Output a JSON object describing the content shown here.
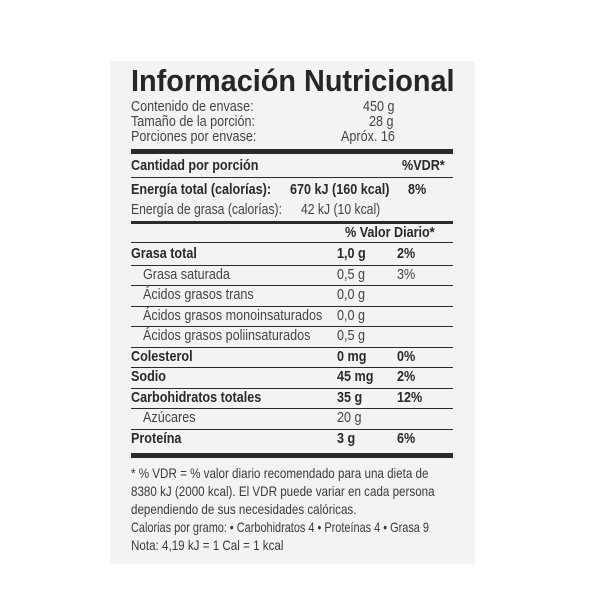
{
  "label": {
    "title": "Información Nutricional",
    "header": [
      {
        "label": "Contenido de envase:",
        "value": "450 g"
      },
      {
        "label": "Tamaño de la porción:",
        "value": "28 g"
      },
      {
        "label": "Porciones por envase:",
        "value": "Apróx. 16"
      }
    ],
    "amount_per_serving": "Cantidad por porción",
    "vdr_header": "%VDR*",
    "energy": {
      "label": "Energía total (calorías):",
      "value": "670 kJ (160 kcal)",
      "pct": "8%"
    },
    "energy_fat": {
      "label": "Energía de grasa (calorías):",
      "value": "42 kJ (10 kcal)"
    },
    "daily_value_header": "% Valor Diario*",
    "nutrients": [
      {
        "label": "Grasa total",
        "amount": "1,0 g",
        "pct": "2%",
        "bold": true
      },
      {
        "label": "Grasa saturada",
        "amount": "0,5 g",
        "pct": "3%",
        "bold": false
      },
      {
        "label": "Ácidos grasos trans",
        "amount": "0,0 g",
        "pct": "",
        "bold": false
      },
      {
        "label": "Ácidos grasos monoinsaturados",
        "amount": "0,0 g",
        "pct": "",
        "bold": false
      },
      {
        "label": "Ácidos grasos poliinsaturados",
        "amount": "0,5 g",
        "pct": "",
        "bold": false
      },
      {
        "label": "Colesterol",
        "amount": "0 mg",
        "pct": "0%",
        "bold": true
      },
      {
        "label": "Sodio",
        "amount": "45 mg",
        "pct": "2%",
        "bold": true
      },
      {
        "label": "Carbohidratos totales",
        "amount": "35 g",
        "pct": "12%",
        "bold": true
      },
      {
        "label": "Azúcares",
        "amount": "20 g",
        "pct": "",
        "bold": false
      },
      {
        "label": "Proteína",
        "amount": "3 g",
        "pct": "6%",
        "bold": true
      }
    ],
    "footnotes": [
      "* % VDR = % valor diario recomendado para una dieta de",
      "8380 kJ (2000 kcal).  El VDR puede variar en cada persona",
      "dependiendo de sus necesidades calóricas.",
      "Calorias por gramo: • Carbohidratos 4 • Proteínas 4 • Grasa 9",
      "Nota: 4,19 kJ = 1 Cal = 1 kcal"
    ]
  }
}
